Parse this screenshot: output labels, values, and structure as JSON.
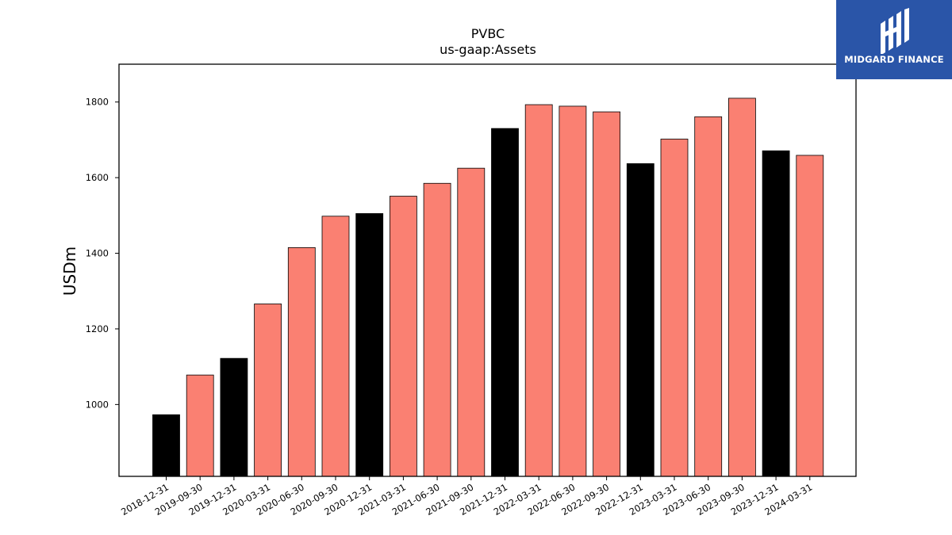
{
  "logo": {
    "text": "MIDGARD FINANCE",
    "color": "#2a55a8"
  },
  "colors": {
    "annual": "#000000",
    "quarterly": "#fa8072"
  },
  "chart_data": {
    "type": "bar",
    "title": "PVBC",
    "subtitle": "us-gaap:Assets",
    "xlabel": "",
    "ylabel": "USDm",
    "ylim": [
      810,
      1900
    ],
    "yticks": [
      1000,
      1200,
      1400,
      1600,
      1800
    ],
    "grid": false,
    "categories": [
      "2018-12-31",
      "2019-09-30",
      "2019-12-31",
      "2020-03-31",
      "2020-06-30",
      "2020-09-30",
      "2020-12-31",
      "2021-03-31",
      "2021-06-30",
      "2021-09-30",
      "2021-12-31",
      "2022-03-31",
      "2022-06-30",
      "2022-09-30",
      "2022-12-31",
      "2023-03-31",
      "2023-06-30",
      "2023-09-30",
      "2023-12-31",
      "2024-03-31"
    ],
    "values": [
      973,
      1078,
      1122,
      1266,
      1415,
      1498,
      1505,
      1551,
      1585,
      1625,
      1730,
      1793,
      1789,
      1774,
      1637,
      1702,
      1761,
      1810,
      1671,
      1659
    ],
    "bar_colors": [
      "black",
      "salmon",
      "black",
      "salmon",
      "salmon",
      "salmon",
      "black",
      "salmon",
      "salmon",
      "salmon",
      "black",
      "salmon",
      "salmon",
      "salmon",
      "black",
      "salmon",
      "salmon",
      "salmon",
      "black",
      "salmon"
    ]
  }
}
